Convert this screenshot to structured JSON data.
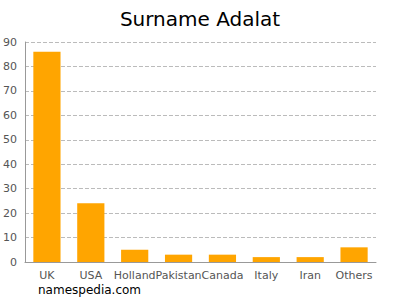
{
  "chart_data": {
    "type": "bar",
    "title": "Surname Adalat",
    "categories": [
      "UK",
      "USA",
      "Holland",
      "Pakistan",
      "Canada",
      "Italy",
      "Iran",
      "Others"
    ],
    "values": [
      86,
      24,
      5,
      3,
      3,
      2,
      2,
      6
    ],
    "color": "#ffa500",
    "ylim": [
      0,
      90
    ],
    "yticks": [
      0,
      10,
      20,
      30,
      40,
      50,
      60,
      70,
      80,
      90
    ],
    "grid": true,
    "annotations": [
      "namespedia.com"
    ]
  }
}
